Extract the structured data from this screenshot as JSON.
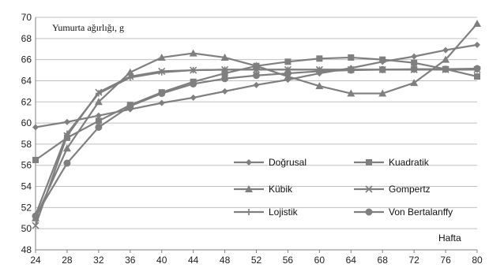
{
  "chart_data": {
    "type": "line",
    "ylabel": "Yumurta ağırlığı, g",
    "xlabel": "Hafta",
    "x": [
      24,
      28,
      32,
      36,
      40,
      44,
      48,
      52,
      56,
      60,
      64,
      68,
      72,
      76,
      80
    ],
    "xlim": [
      24,
      80
    ],
    "ylim": [
      48,
      70
    ],
    "yticks": [
      48,
      50,
      52,
      54,
      56,
      58,
      60,
      62,
      64,
      66,
      68,
      70
    ],
    "grid": "horizontal",
    "legend_position": "bottom-right inside plot",
    "series": [
      {
        "name": "Doğrusal",
        "marker": "diamond",
        "values": [
          59.6,
          60.1,
          60.7,
          61.3,
          61.9,
          62.4,
          63.0,
          63.6,
          64.1,
          64.7,
          65.2,
          65.8,
          66.3,
          66.9,
          67.4
        ]
      },
      {
        "name": "Kuadratik",
        "marker": "square",
        "values": [
          56.5,
          58.6,
          60.2,
          61.7,
          62.9,
          63.9,
          64.7,
          65.4,
          65.8,
          66.1,
          66.2,
          66.0,
          65.7,
          65.1,
          64.4
        ]
      },
      {
        "name": "Kübik",
        "marker": "triangle",
        "values": [
          51.0,
          57.6,
          62.0,
          64.8,
          66.2,
          66.6,
          66.2,
          65.4,
          64.4,
          63.5,
          62.8,
          62.8,
          63.8,
          66.0,
          69.4
        ]
      },
      {
        "name": "Gompertz",
        "marker": "x",
        "values": [
          50.3,
          58.8,
          62.9,
          64.4,
          64.9,
          65.0,
          65.05,
          65.05,
          65.05,
          65.05,
          65.05,
          65.05,
          65.05,
          65.05,
          65.05
        ]
      },
      {
        "name": "Lojistik",
        "marker": "plus",
        "values": [
          51.3,
          59.0,
          62.8,
          64.3,
          64.8,
          65.0,
          65.05,
          65.05,
          65.05,
          65.05,
          65.05,
          65.05,
          65.05,
          65.05,
          65.05
        ]
      },
      {
        "name": "Von Bertalanffy",
        "marker": "circle",
        "values": [
          51.2,
          56.2,
          59.6,
          61.6,
          62.8,
          63.7,
          64.2,
          64.5,
          64.7,
          64.9,
          65.0,
          65.05,
          65.1,
          65.1,
          65.15
        ]
      }
    ],
    "colors": {
      "line": "#7f7f7f",
      "grid": "#bfbfbf",
      "axis": "#808080",
      "text": "#222222"
    }
  }
}
